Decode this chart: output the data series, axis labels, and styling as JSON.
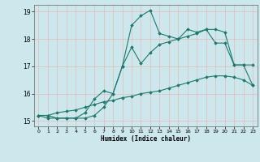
{
  "title": "",
  "xlabel": "Humidex (Indice chaleur)",
  "xlim": [
    -0.5,
    23.5
  ],
  "ylim": [
    14.8,
    19.25
  ],
  "xticks": [
    0,
    1,
    2,
    3,
    4,
    5,
    6,
    7,
    8,
    9,
    10,
    11,
    12,
    13,
    14,
    15,
    16,
    17,
    18,
    19,
    20,
    21,
    22,
    23
  ],
  "yticks": [
    15,
    16,
    17,
    18,
    19
  ],
  "bg_color": "#cde8ec",
  "line_color": "#1a7a6e",
  "grid_major_color": "#f0a0a0",
  "grid_minor_color": "#d0e8ec",
  "series": [
    {
      "x": [
        0,
        1,
        2,
        3,
        4,
        5,
        6,
        7,
        8,
        9,
        10,
        11,
        12,
        13,
        14,
        15,
        16,
        17,
        18,
        19,
        20,
        21,
        22,
        23
      ],
      "y": [
        15.2,
        15.2,
        15.1,
        15.1,
        15.1,
        15.1,
        15.2,
        15.5,
        16.0,
        17.0,
        18.5,
        18.85,
        19.05,
        18.2,
        18.1,
        18.0,
        18.35,
        18.25,
        18.35,
        18.35,
        18.25,
        17.05,
        17.05,
        17.05
      ]
    },
    {
      "x": [
        0,
        1,
        2,
        3,
        4,
        5,
        6,
        7,
        8,
        9,
        10,
        11,
        12,
        13,
        14,
        15,
        16,
        17,
        18,
        19,
        20,
        21,
        22,
        23
      ],
      "y": [
        15.2,
        15.1,
        15.1,
        15.1,
        15.1,
        15.3,
        15.8,
        16.1,
        16.0,
        17.0,
        17.7,
        17.1,
        17.5,
        17.8,
        17.9,
        18.0,
        18.1,
        18.2,
        18.35,
        17.85,
        17.85,
        17.05,
        17.05,
        16.3
      ]
    },
    {
      "x": [
        0,
        1,
        2,
        3,
        4,
        5,
        6,
        7,
        8,
        9,
        10,
        11,
        12,
        13,
        14,
        15,
        16,
        17,
        18,
        19,
        20,
        21,
        22,
        23
      ],
      "y": [
        15.2,
        15.2,
        15.3,
        15.35,
        15.4,
        15.5,
        15.6,
        15.7,
        15.75,
        15.85,
        15.9,
        16.0,
        16.05,
        16.1,
        16.2,
        16.3,
        16.4,
        16.5,
        16.6,
        16.65,
        16.65,
        16.6,
        16.5,
        16.3
      ]
    }
  ]
}
